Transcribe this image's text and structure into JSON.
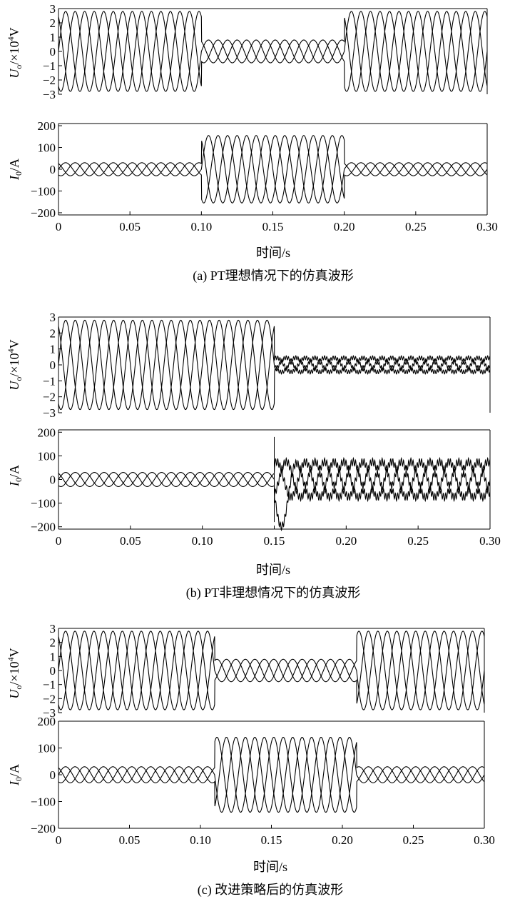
{
  "figure": {
    "panels": [
      {
        "caption": "(a) PT理想情况下的仿真波形",
        "xlabel": "时间/s",
        "voltage_ylabel": "U_o/×10^4V",
        "current_ylabel": "I_0/A"
      },
      {
        "caption": "(b) PT非理想情况下的仿真波形",
        "xlabel": "时间/s",
        "voltage_ylabel": "U_o/×10^4V",
        "current_ylabel": "I_0/A"
      },
      {
        "caption": "(c) 改进策略后的仿真波形",
        "xlabel": "时间/s",
        "voltage_ylabel": "U_o/×10^4V",
        "current_ylabel": "I_0/A"
      }
    ]
  },
  "chart_data": [
    {
      "type": "line",
      "title": "(a) PT理想情况下的仿真波形",
      "xlabel": "时间/s",
      "ylabel": "U_o/×10^4V",
      "xlim": [
        0,
        0.3
      ],
      "ylim": [
        -3,
        3
      ],
      "yticks": [
        "3",
        "2",
        "1",
        "0",
        "-1",
        "-2",
        "-3"
      ],
      "waveform": "three-phase sinusoid, 50 Hz, phases 0°/-120°/+120°",
      "segments": [
        {
          "t_start": 0.0,
          "t_end": 0.1,
          "amplitude": 2.8
        },
        {
          "t_start": 0.1,
          "t_end": 0.2,
          "amplitude": 0.8
        },
        {
          "t_start": 0.2,
          "t_end": 0.3,
          "amplitude": 2.8
        }
      ]
    },
    {
      "type": "line",
      "title": "(a) PT理想情况下的仿真波形",
      "xlabel": "时间/s",
      "ylabel": "I_0/A",
      "xlim": [
        0,
        0.3
      ],
      "ylim": [
        -210,
        210
      ],
      "xticks": [
        "0",
        "0.05",
        "0.10",
        "0.15",
        "0.20",
        "0.25",
        "0.30"
      ],
      "yticks": [
        "200",
        "100",
        "0",
        "-100",
        "-200"
      ],
      "waveform": "three-phase sinusoid, 50 Hz, phases 0°/-120°/+120°",
      "segments": [
        {
          "t_start": 0.0,
          "t_end": 0.1,
          "amplitude": 30
        },
        {
          "t_start": 0.1,
          "t_end": 0.2,
          "amplitude": 155
        },
        {
          "t_start": 0.2,
          "t_end": 0.3,
          "amplitude": 30
        }
      ]
    },
    {
      "type": "line",
      "title": "(b) PT非理想情况下的仿真波形",
      "xlabel": "时间/s",
      "ylabel": "U_o/×10^4V",
      "xlim": [
        0,
        0.3
      ],
      "ylim": [
        -3,
        3
      ],
      "yticks": [
        "3",
        "2",
        "1",
        "0",
        "-1",
        "-2",
        "-3"
      ],
      "waveform": "three-phase sinusoid, 50 Hz, phases 0°/-120°/+120°",
      "segments": [
        {
          "t_start": 0.0,
          "t_end": 0.15,
          "amplitude": 2.8
        },
        {
          "t_start": 0.15,
          "t_end": 0.3,
          "amplitude": 0.45,
          "ripple": 0.12
        }
      ]
    },
    {
      "type": "line",
      "title": "(b) PT非理想情况下的仿真波形",
      "xlabel": "时间/s",
      "ylabel": "I_0/A",
      "xlim": [
        0,
        0.3
      ],
      "ylim": [
        -210,
        210
      ],
      "xticks": [
        "0",
        "0.05",
        "0.10",
        "0.15",
        "0.20",
        "0.25",
        "0.30"
      ],
      "yticks": [
        "200",
        "100",
        "0",
        "-100",
        "-200"
      ],
      "waveform": "three-phase sinusoid, 50 Hz, phases 0°/-120°/+120°",
      "segments": [
        {
          "t_start": 0.0,
          "t_end": 0.15,
          "amplitude": 30
        },
        {
          "t_start": 0.15,
          "t_end": 0.3,
          "amplitude": 75,
          "ripple": 15
        }
      ],
      "transient": {
        "t": 0.155,
        "min": -200,
        "spike": 180
      }
    },
    {
      "type": "line",
      "title": "(c) 改进策略后的仿真波形",
      "xlabel": "时间/s",
      "ylabel": "U_o/×10^4V",
      "xlim": [
        0,
        0.3
      ],
      "ylim": [
        -3,
        3
      ],
      "yticks": [
        "3",
        "2",
        "1",
        "0",
        "-1",
        "-2",
        "-3"
      ],
      "waveform": "three-phase sinusoid, 50 Hz, phases 0°/-120°/+120°",
      "segments": [
        {
          "t_start": 0.0,
          "t_end": 0.11,
          "amplitude": 2.8
        },
        {
          "t_start": 0.11,
          "t_end": 0.21,
          "amplitude": 0.8
        },
        {
          "t_start": 0.21,
          "t_end": 0.3,
          "amplitude": 2.8
        }
      ]
    },
    {
      "type": "line",
      "title": "(c) 改进策略后的仿真波形",
      "xlabel": "时间/s",
      "ylabel": "I_0/A",
      "xlim": [
        0,
        0.3
      ],
      "ylim": [
        -200,
        200
      ],
      "xticks": [
        "0",
        "0.05",
        "0.10",
        "0.15",
        "0.20",
        "0.25",
        "0.30"
      ],
      "yticks": [
        "200",
        "100",
        "0",
        "-100",
        "-200"
      ],
      "waveform": "three-phase sinusoid, 50 Hz, phases 0°/-120°/+120°",
      "segments": [
        {
          "t_start": 0.0,
          "t_end": 0.11,
          "amplitude": 30
        },
        {
          "t_start": 0.11,
          "t_end": 0.21,
          "amplitude": 140
        },
        {
          "t_start": 0.21,
          "t_end": 0.3,
          "amplitude": 30
        }
      ]
    }
  ]
}
